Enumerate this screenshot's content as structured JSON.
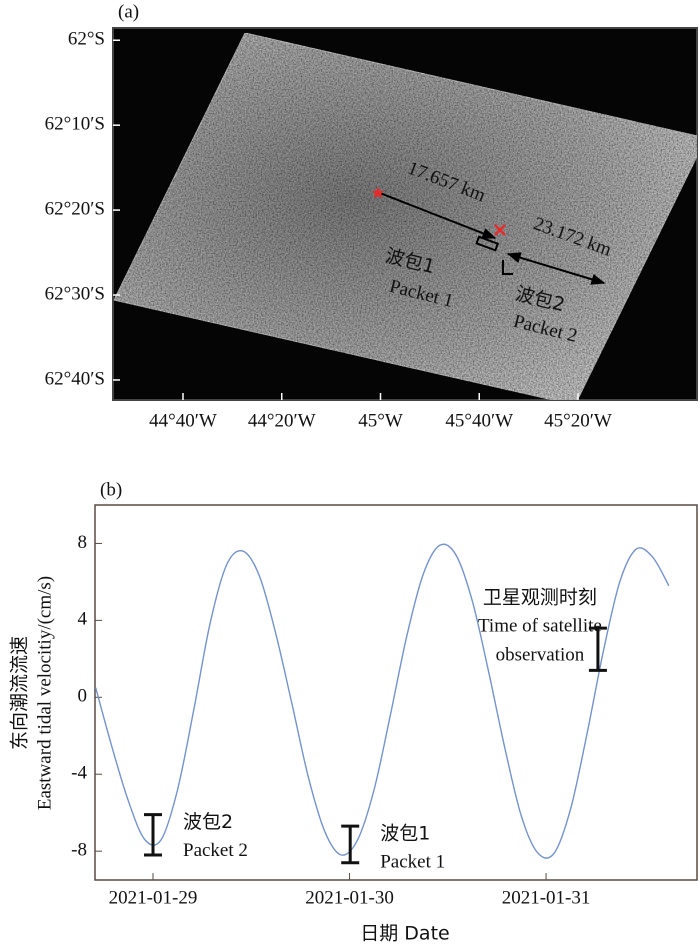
{
  "chart_data": [
    {
      "type": "map",
      "panel_label": "(a)",
      "ylim": [
        -62.706,
        -61.976
      ],
      "yticks": [
        {
          "value": -62,
          "label": "62°S"
        },
        {
          "value": -62.1667,
          "label": "62°10′S"
        },
        {
          "value": -62.3333,
          "label": "62°20′S"
        },
        {
          "value": -62.5,
          "label": "62°30′S"
        },
        {
          "value": -62.6667,
          "label": "62°40′S"
        }
      ],
      "x_tick_labels": [
        "44°40′W",
        "44°20′W",
        "45°W",
        "45°40′W",
        "45°20′W"
      ],
      "annotations": [
        "17.657 km",
        "23.172 km",
        "波包1",
        "Packet 1",
        "波包2",
        "Packet 2"
      ]
    },
    {
      "type": "line",
      "panel_label": "(b)",
      "xlabel": "日期 Date",
      "ylabel": [
        "东向潮流流速",
        "Eastward tidal velocitiy/(cm/s)"
      ],
      "x": [
        "2021-01-28 17:00",
        "2021-01-28 19:00",
        "2021-01-28 21:00",
        "2021-01-28 23:00",
        "2021-01-29 01:00",
        "2021-01-29 03:00",
        "2021-01-29 05:00",
        "2021-01-29 07:00",
        "2021-01-29 09:00",
        "2021-01-29 11:00",
        "2021-01-29 13:00",
        "2021-01-29 15:00",
        "2021-01-29 17:00",
        "2021-01-29 19:00",
        "2021-01-29 21:00",
        "2021-01-29 23:00",
        "2021-01-30 01:00",
        "2021-01-30 03:00",
        "2021-01-30 05:00",
        "2021-01-30 07:00",
        "2021-01-30 09:00",
        "2021-01-30 11:00",
        "2021-01-30 13:00",
        "2021-01-30 15:00",
        "2021-01-30 17:00",
        "2021-01-30 19:00",
        "2021-01-30 21:00",
        "2021-01-30 23:00",
        "2021-01-31 01:00",
        "2021-01-31 03:00",
        "2021-01-31 05:00",
        "2021-01-31 07:00",
        "2021-01-31 09:00",
        "2021-01-31 11:00",
        "2021-01-31 13:00",
        "2021-01-31 15:00"
      ],
      "values": [
        0.5,
        -2.6,
        -5.4,
        -7.4,
        -7.4,
        -4.8,
        -0.6,
        3.9,
        6.9,
        7.6,
        6.3,
        3.3,
        -0.4,
        -4.2,
        -7.0,
        -8.2,
        -7.4,
        -4.8,
        -0.9,
        3.2,
        6.4,
        7.9,
        7.4,
        5.0,
        1.3,
        -2.7,
        -6.2,
        -8.1,
        -8.1,
        -5.8,
        -1.9,
        2.4,
        6.0,
        7.7,
        7.3,
        5.8
      ],
      "color": "#7393cc",
      "xlim": [
        "2021-01-28 16:55",
        "2021-01-31 18:26"
      ],
      "xticks": [
        "2021-01-29",
        "2021-01-30",
        "2021-01-31"
      ],
      "ylim": [
        -9.5,
        10
      ],
      "yticks": [
        -8,
        -4,
        0,
        4,
        8
      ],
      "intervals": [
        {
          "x": "2021-01-29 00:00",
          "low": -8.2,
          "high": -6.1,
          "label": [
            "波包2",
            "Packet 2"
          ]
        },
        {
          "x": "2021-01-30 00:05",
          "low": -8.6,
          "high": -6.7,
          "label": [
            "波包1",
            "Packet 1"
          ]
        },
        {
          "x": "2021-01-31 06:20",
          "low": 1.4,
          "high": 3.6,
          "label": [
            "卫星观测时刻",
            "Time of satellite",
            "observation"
          ]
        }
      ]
    }
  ]
}
